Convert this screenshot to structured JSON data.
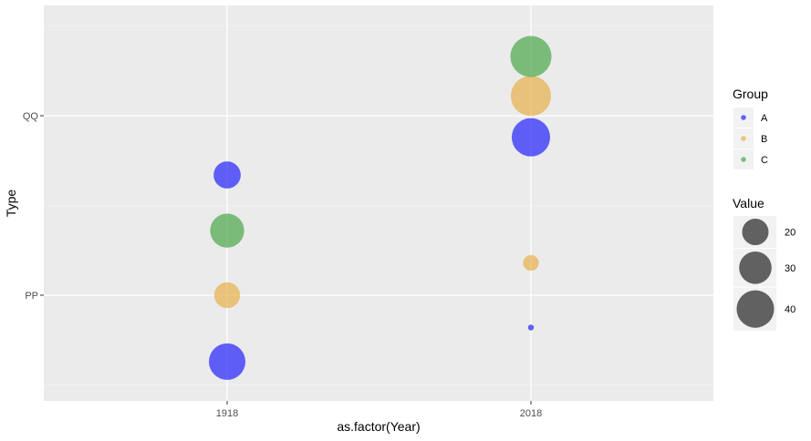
{
  "chart_data": {
    "type": "scatter",
    "xlabel": "as.factor(Year)",
    "ylabel": "Type",
    "x_categories": [
      "1918",
      "2018"
    ],
    "y_categories": [
      "PP",
      "QQ"
    ],
    "grid": true,
    "legend_position": "right",
    "color_legend": {
      "title": "Group",
      "entries": [
        {
          "label": "A",
          "color": "#0000ff"
        },
        {
          "label": "B",
          "color": "#e6a531"
        },
        {
          "label": "C",
          "color": "#2f9b2f"
        }
      ]
    },
    "size_legend": {
      "title": "Value",
      "entries": [
        {
          "label": "20",
          "value": 20
        },
        {
          "label": "30",
          "value": 30
        },
        {
          "label": "40",
          "value": 40
        }
      ]
    },
    "size_scale": {
      "min_value": 1,
      "max_value": 48
    },
    "points": [
      {
        "x": "1918",
        "y": 0.63,
        "group": "A",
        "value": 38
      },
      {
        "x": "1918",
        "y": 1.0,
        "group": "B",
        "value": 19
      },
      {
        "x": "1918",
        "y": 1.36,
        "group": "C",
        "value": 33
      },
      {
        "x": "1918",
        "y": 1.67,
        "group": "A",
        "value": 21
      },
      {
        "x": "2018",
        "y": 0.82,
        "group": "A",
        "value": 1
      },
      {
        "x": "2018",
        "y": 1.18,
        "group": "B",
        "value": 7
      },
      {
        "x": "2018",
        "y": 1.88,
        "group": "A",
        "value": 42
      },
      {
        "x": "2018",
        "y": 2.11,
        "group": "B",
        "value": 46
      },
      {
        "x": "2018",
        "y": 2.33,
        "group": "C",
        "value": 48
      }
    ]
  }
}
